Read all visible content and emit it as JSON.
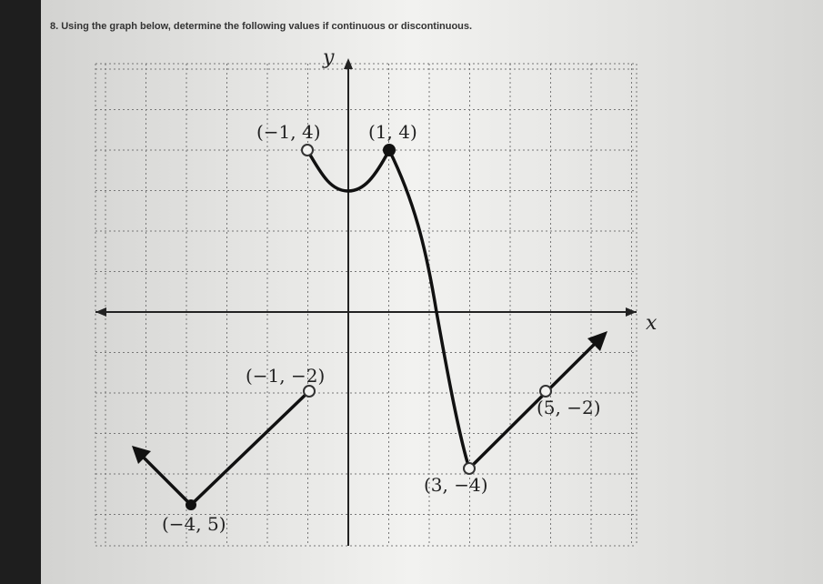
{
  "question": "8. Using the graph below, determine the following values if continuous or discontinuous.",
  "graph": {
    "y_axis_label": "y",
    "x_axis_label": "x",
    "point_labels": [
      "(−1, 4)",
      "(1, 4)",
      "(−1, −2)",
      "(5, −2)",
      "(3, −4)",
      "(−4, 5)"
    ]
  }
}
